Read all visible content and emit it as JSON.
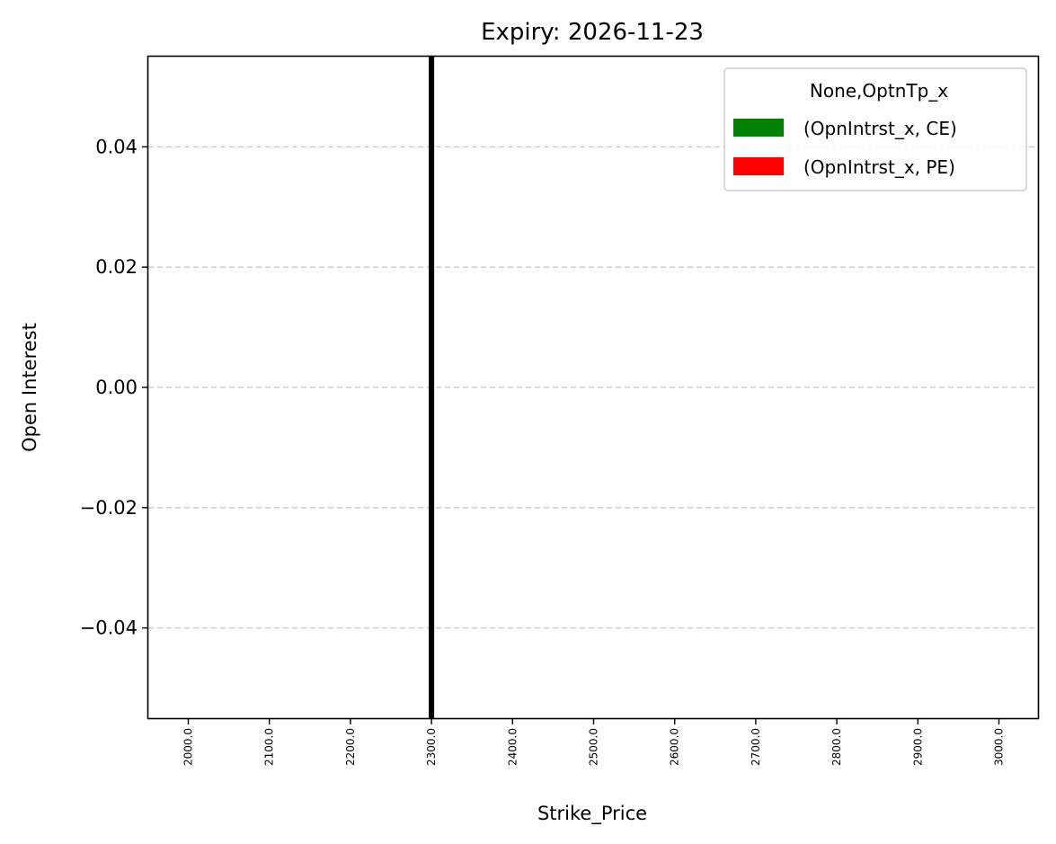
{
  "chart_data": {
    "type": "bar",
    "title": "Expiry: 2026-11-23",
    "xlabel": "Strike_Price",
    "ylabel": "Open Interest",
    "categories": [
      "2000.0",
      "2100.0",
      "2200.0",
      "2300.0",
      "2400.0",
      "2500.0",
      "2600.0",
      "2700.0",
      "2800.0",
      "2900.0",
      "3000.0"
    ],
    "series": [
      {
        "name": "(OpnIntrst_x, CE)",
        "color": "#008000",
        "values": [
          0,
          0,
          0,
          0,
          0,
          0,
          0,
          0,
          0,
          0,
          0
        ]
      },
      {
        "name": "(OpnIntrst_x, PE)",
        "color": "#ff0000",
        "values": [
          0,
          0,
          0,
          0,
          0,
          0,
          0,
          0,
          0,
          0,
          0
        ]
      }
    ],
    "ylim": [
      -0.055,
      0.055
    ],
    "yticks": [
      -0.04,
      -0.02,
      0.0,
      0.02,
      0.04
    ],
    "ytick_labels": [
      "−0.04",
      "−0.02",
      "0.00",
      "0.02",
      "0.04"
    ],
    "grid": {
      "axis": "y",
      "style": "dashed",
      "color": "#c8c8c8"
    },
    "vline": {
      "x": "2300.0",
      "color": "#000000"
    },
    "legend": {
      "title": "None,OptnTp_x",
      "placement": "top-right"
    }
  }
}
